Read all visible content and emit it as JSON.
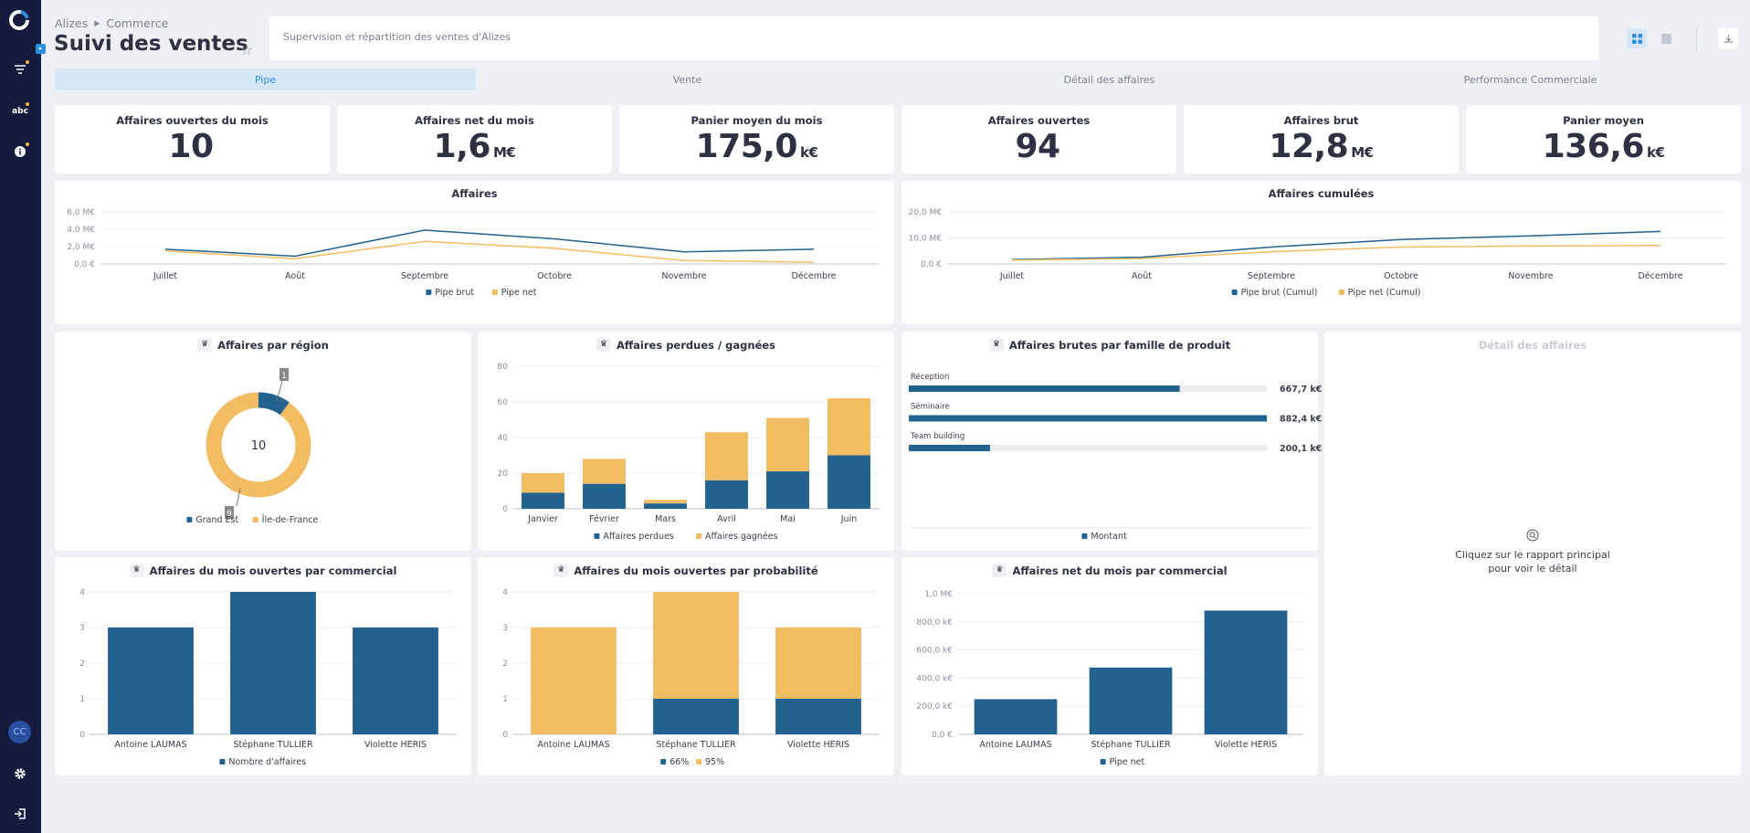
{
  "sidebar": {
    "avatar": "CC"
  },
  "header": {
    "breadcrumb": [
      "Alizes",
      "Commerce"
    ],
    "title": "Suivi des ventes",
    "description": "Supervision et répartition des ventes d'Alizes"
  },
  "tabs": [
    "Pipe",
    "Vente",
    "Détail des affaires",
    "Performance Commerciale"
  ],
  "kpis": [
    {
      "title": "Affaires ouvertes du mois",
      "value": "10",
      "unit": ""
    },
    {
      "title": "Affaires net du mois",
      "value": "1,6",
      "unit": "M€"
    },
    {
      "title": "Panier moyen du mois",
      "value": "175,0",
      "unit": "k€"
    },
    {
      "title": "Affaires ouvertes",
      "value": "94",
      "unit": ""
    },
    {
      "title": "Affaires brut",
      "value": "12,8",
      "unit": "M€"
    },
    {
      "title": "Panier moyen",
      "value": "136,6",
      "unit": "k€"
    }
  ],
  "detail": {
    "title": "Détail des affaires",
    "hint1": "Cliquez sur le rapport principal",
    "hint2": "pour voir le détail"
  },
  "colors": {
    "blue": "#23618e",
    "orange": "#f2bc63",
    "track": "#ededf0",
    "grid": "#ececec"
  },
  "chart_data": [
    {
      "id": "affaires",
      "type": "line",
      "title": "Affaires",
      "categories": [
        "Juillet",
        "Août",
        "Septembre",
        "Octobre",
        "Novembre",
        "Décembre"
      ],
      "ylim": [
        0,
        6
      ],
      "yticks": [
        0,
        2,
        4,
        6
      ],
      "ytick_labels": [
        "0,0 €",
        "2,0 M€",
        "4,0 M€",
        "6,0 M€"
      ],
      "series": [
        {
          "name": "Pipe brut",
          "values": [
            1.7,
            0.9,
            3.9,
            2.9,
            1.4,
            1.7
          ]
        },
        {
          "name": "Pipe net",
          "values": [
            1.5,
            0.6,
            2.6,
            1.8,
            0.4,
            0.2
          ]
        }
      ]
    },
    {
      "id": "cumul",
      "type": "line",
      "title": "Affaires cumulées",
      "categories": [
        "Juillet",
        "Août",
        "Septembre",
        "Octobre",
        "Novembre",
        "Décembre"
      ],
      "ylim": [
        0,
        20
      ],
      "yticks": [
        0,
        10,
        20
      ],
      "ytick_labels": [
        "0,0 €",
        "10,0 M€",
        "20,0 M€"
      ],
      "series": [
        {
          "name": "Pipe brut (Cumul)",
          "values": [
            1.7,
            2.6,
            6.5,
            9.4,
            10.8,
            12.5
          ]
        },
        {
          "name": "Pipe net (Cumul)",
          "values": [
            1.5,
            2.1,
            4.7,
            6.5,
            6.9,
            7.1
          ]
        }
      ]
    },
    {
      "id": "region",
      "type": "pie",
      "title": "Affaires par région",
      "center_label": "10",
      "slices": [
        {
          "name": "Grand Est",
          "value": 1,
          "label": "1"
        },
        {
          "name": "Île-de-France",
          "value": 9,
          "label": "9"
        }
      ]
    },
    {
      "id": "perdues",
      "type": "bar",
      "stacked": true,
      "title": "Affaires perdues / gagnées",
      "categories": [
        "Janvier",
        "Février",
        "Mars",
        "Avril",
        "Mai",
        "Juin"
      ],
      "ylim": [
        0,
        80
      ],
      "yticks": [
        0,
        20,
        40,
        60,
        80
      ],
      "ytick_labels": [
        "0",
        "20",
        "40",
        "60",
        "80"
      ],
      "series": [
        {
          "name": "Affaires perdues",
          "values": [
            9,
            14,
            3,
            16,
            21,
            30
          ]
        },
        {
          "name": "Affaires gagnées",
          "values": [
            11,
            14,
            2,
            27,
            30,
            32
          ]
        }
      ]
    },
    {
      "id": "famille",
      "type": "bar",
      "orientation": "horizontal",
      "title": "Affaires brutes par famille de produit",
      "max": 882.4,
      "categories": [
        "Réception",
        "Séminaire",
        "Team building"
      ],
      "values": [
        667.7,
        882.4,
        200.1
      ],
      "value_labels": [
        "667,7 k€",
        "882,4 k€",
        "200,1 k€"
      ],
      "series": [
        {
          "name": "Montant"
        }
      ]
    },
    {
      "id": "commercial",
      "type": "bar",
      "title": "Affaires du mois ouvertes par commercial",
      "categories": [
        "Antoine LAUMAS",
        "Stéphane TULLIER",
        "Violette HERIS"
      ],
      "ylim": [
        0,
        4
      ],
      "yticks": [
        0,
        1,
        2,
        3,
        4
      ],
      "ytick_labels": [
        "0",
        "1",
        "2",
        "3",
        "4"
      ],
      "series": [
        {
          "name": "Nombre d'affaires",
          "values": [
            3,
            4,
            3
          ]
        }
      ]
    },
    {
      "id": "probabilite",
      "type": "bar",
      "stacked": true,
      "title": "Affaires du mois ouvertes par probabilité",
      "categories": [
        "Antoine LAUMAS",
        "Stéphane TULLIER",
        "Violette HERIS"
      ],
      "ylim": [
        0,
        4
      ],
      "yticks": [
        0,
        1,
        2,
        3,
        4
      ],
      "ytick_labels": [
        "0",
        "1",
        "2",
        "3",
        "4"
      ],
      "series": [
        {
          "name": "66%",
          "values": [
            0,
            1,
            1
          ]
        },
        {
          "name": "95%",
          "values": [
            3,
            3,
            2
          ]
        }
      ]
    },
    {
      "id": "net",
      "type": "bar",
      "title": "Affaires net du mois par commercial",
      "categories": [
        "Antoine LAUMAS",
        "Stéphane TULLIER",
        "Violette HERIS"
      ],
      "ylim": [
        0,
        1000
      ],
      "yticks": [
        0,
        200,
        400,
        600,
        800,
        1000
      ],
      "ytick_labels": [
        "0,0 €",
        "200,0 k€",
        "400,0 k€",
        "600,0 k€",
        "800,0 k€",
        "1,0 M€"
      ],
      "series": [
        {
          "name": "Pipe net",
          "values": [
            250,
            475,
            880
          ]
        }
      ]
    }
  ]
}
